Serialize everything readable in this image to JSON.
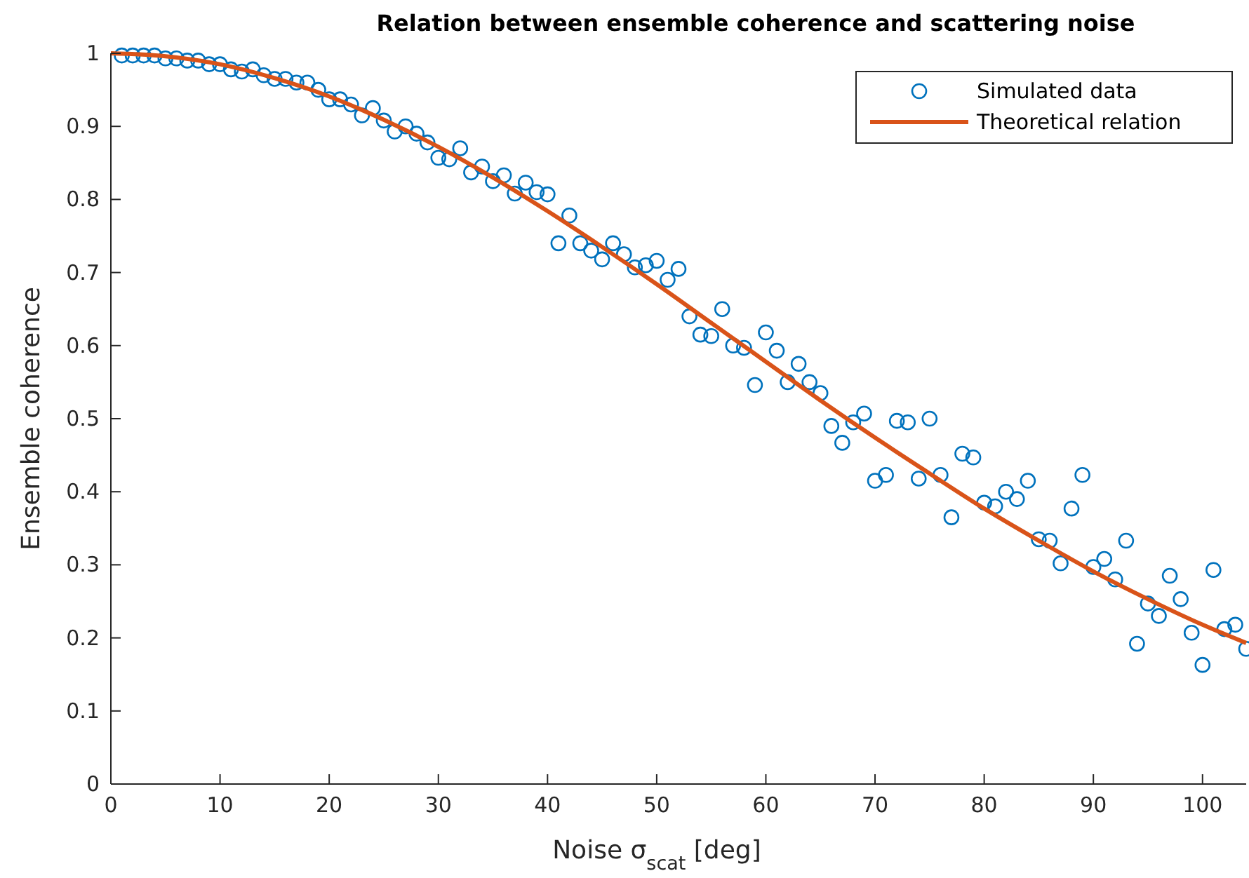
{
  "chart_data": {
    "type": "scatter",
    "title": "Relation between ensemble coherence and scattering noise",
    "xlabel": "Noise σ$_{scat}$ [deg]",
    "ylabel": "Ensemble coherence",
    "xlim": [
      0,
      104
    ],
    "ylim": [
      0,
      1
    ],
    "xticks": [
      0,
      10,
      20,
      30,
      40,
      50,
      60,
      70,
      80,
      90,
      100
    ],
    "yticks": [
      0,
      0.1,
      0.2,
      0.3,
      0.4,
      0.5,
      0.6,
      0.7,
      0.8,
      0.9,
      1
    ],
    "grid": false,
    "legend": "top right",
    "series": [
      {
        "name": "Simulated data",
        "marker": "circle",
        "color": "#0072bd",
        "x": [
          1,
          2,
          3,
          4,
          5,
          6,
          7,
          8,
          9,
          10,
          11,
          12,
          13,
          14,
          15,
          16,
          17,
          18,
          19,
          20,
          21,
          22,
          23,
          24,
          25,
          26,
          27,
          28,
          29,
          30,
          31,
          32,
          33,
          34,
          35,
          36,
          37,
          38,
          39,
          40,
          41,
          42,
          43,
          44,
          45,
          46,
          47,
          48,
          49,
          50,
          51,
          52,
          53,
          54,
          55,
          56,
          57,
          58,
          59,
          60,
          61,
          62,
          63,
          64,
          65,
          66,
          67,
          68,
          69,
          70,
          71,
          72,
          73,
          74,
          75,
          76,
          77,
          78,
          79,
          80,
          81,
          82,
          83,
          84,
          85,
          86,
          87,
          88,
          89,
          90,
          91,
          92,
          93,
          94,
          95,
          96,
          97,
          98,
          99,
          100,
          101,
          102,
          103,
          104
        ],
        "values": [
          0.997,
          0.997,
          0.997,
          0.997,
          0.993,
          0.993,
          0.99,
          0.99,
          0.985,
          0.985,
          0.978,
          0.975,
          0.978,
          0.97,
          0.965,
          0.965,
          0.96,
          0.96,
          0.95,
          0.937,
          0.937,
          0.93,
          0.915,
          0.925,
          0.908,
          0.893,
          0.9,
          0.89,
          0.878,
          0.857,
          0.855,
          0.87,
          0.837,
          0.845,
          0.825,
          0.833,
          0.808,
          0.823,
          0.81,
          0.807,
          0.74,
          0.778,
          0.74,
          0.73,
          0.718,
          0.74,
          0.725,
          0.707,
          0.71,
          0.716,
          0.69,
          0.705,
          0.64,
          0.615,
          0.613,
          0.65,
          0.6,
          0.597,
          0.546,
          0.618,
          0.593,
          0.55,
          0.575,
          0.55,
          0.535,
          0.49,
          0.467,
          0.495,
          0.507,
          0.415,
          0.423,
          0.497,
          0.495,
          0.418,
          0.5,
          0.423,
          0.365,
          0.452,
          0.447,
          0.385,
          0.38,
          0.4,
          0.39,
          0.415,
          0.335,
          0.333,
          0.302,
          0.377,
          0.423,
          0.297,
          0.308,
          0.28,
          0.333,
          0.192,
          0.247,
          0.23,
          0.285,
          0.253,
          0.207,
          0.163,
          0.293,
          0.212,
          0.218,
          0.185
        ]
      },
      {
        "name": "Theoretical relation",
        "type": "line",
        "line_style": "solid",
        "color": "#d95319",
        "x": [
          0,
          5,
          10,
          15,
          20,
          25,
          30,
          35,
          40,
          45,
          50,
          55,
          60,
          65,
          70,
          75,
          80,
          85,
          90,
          95,
          100,
          104
        ],
        "values": [
          1,
          0.996,
          0.985,
          0.966,
          0.941,
          0.909,
          0.872,
          0.83,
          0.784,
          0.735,
          0.684,
          0.631,
          0.578,
          0.525,
          0.474,
          0.425,
          0.377,
          0.333,
          0.291,
          0.253,
          0.218,
          0.193
        ]
      }
    ]
  }
}
